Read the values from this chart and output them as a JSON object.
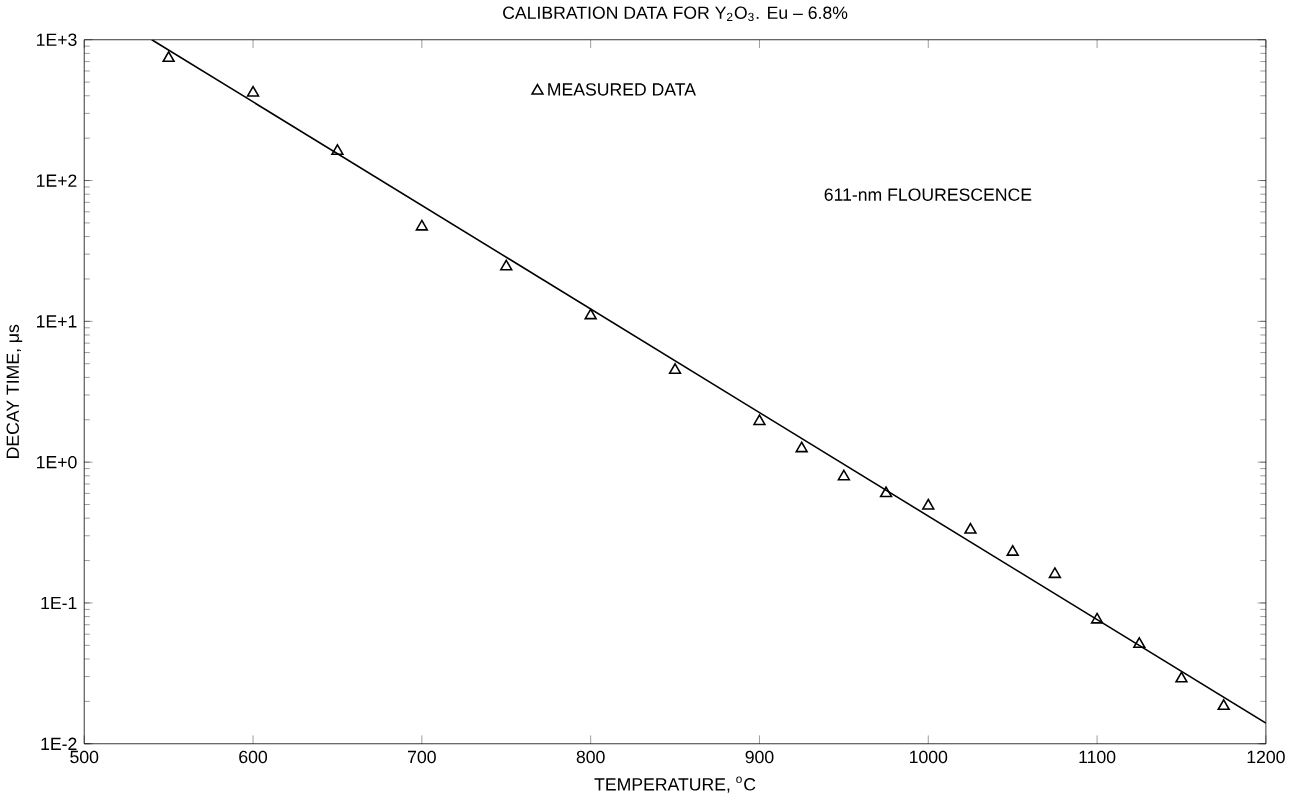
{
  "chart_data": {
    "type": "scatter",
    "title": "CALIBRATION DATA FOR Y$_{2}$O$_{3}$. Eu  – 6.8%",
    "xlabel": "TEMPERATURE, $^{o}$C",
    "ylabel": "DECAY TIME, μs",
    "annotations": [
      "611-nm FLOURESCENCE"
    ],
    "log": "y",
    "grid": false,
    "legend": "top",
    "xlim": [
      500,
      1200
    ],
    "xticks": [
      500,
      600,
      700,
      800,
      900,
      1000,
      1100,
      1200
    ],
    "ylim": [
      0.01,
      1000
    ],
    "yticks": [
      {
        "value": 0.01,
        "label": "1E-2"
      },
      {
        "value": 0.1,
        "label": "1E-1"
      },
      {
        "value": 1,
        "label": "1E+0"
      },
      {
        "value": 10,
        "label": "1E+1"
      },
      {
        "value": 100,
        "label": "1E+2"
      },
      {
        "value": 1000,
        "label": "1E+3"
      }
    ],
    "series": [
      {
        "name": "MEASURED DATA",
        "marker": "triangle",
        "color": "#000000",
        "x": [
          550,
          600,
          650,
          700,
          750,
          800,
          850,
          900,
          925,
          950,
          975,
          1000,
          1025,
          1050,
          1075,
          1100,
          1125,
          1150,
          1175
        ],
        "values": [
          740,
          420,
          162,
          47,
          24.5,
          11,
          4.5,
          1.95,
          1.25,
          0.79,
          0.6,
          0.49,
          0.33,
          0.23,
          0.16,
          0.076,
          0.051,
          0.029,
          0.0185
        ]
      },
      {
        "type": "line",
        "marker": "none",
        "line_style": "solid",
        "color": "#000000",
        "x": [
          540,
          1200
        ],
        "values": [
          1000,
          0.014
        ]
      }
    ]
  }
}
